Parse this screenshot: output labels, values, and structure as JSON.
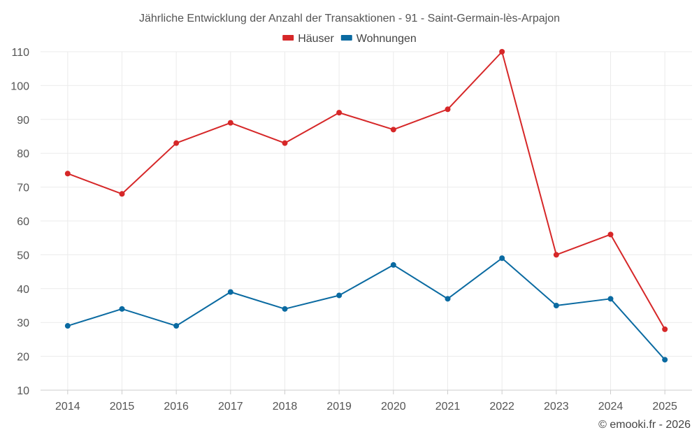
{
  "chart_data": {
    "type": "line",
    "title": "Jährliche Entwicklung der Anzahl der Transaktionen - 91 - Saint-Germain-lès-Arpajon",
    "categories": [
      "2014",
      "2015",
      "2016",
      "2017",
      "2018",
      "2019",
      "2020",
      "2021",
      "2022",
      "2023",
      "2024",
      "2025"
    ],
    "series": [
      {
        "name": "Häuser",
        "color": "#d62728",
        "values": [
          74,
          68,
          83,
          89,
          83,
          92,
          87,
          93,
          110,
          50,
          56,
          28
        ]
      },
      {
        "name": "Wohnungen",
        "color": "#0a6aa1",
        "values": [
          29,
          34,
          29,
          39,
          34,
          38,
          47,
          37,
          49,
          35,
          37,
          19
        ]
      }
    ],
    "ylim": [
      10,
      110
    ],
    "yticks": [
      "10",
      "20",
      "30",
      "40",
      "50",
      "60",
      "70",
      "80",
      "90",
      "100",
      "110"
    ],
    "legend_position": "top-center",
    "grid": true,
    "xlabel": "",
    "ylabel": ""
  },
  "footer": {
    "copyright": "© emooki.fr - 2026"
  }
}
